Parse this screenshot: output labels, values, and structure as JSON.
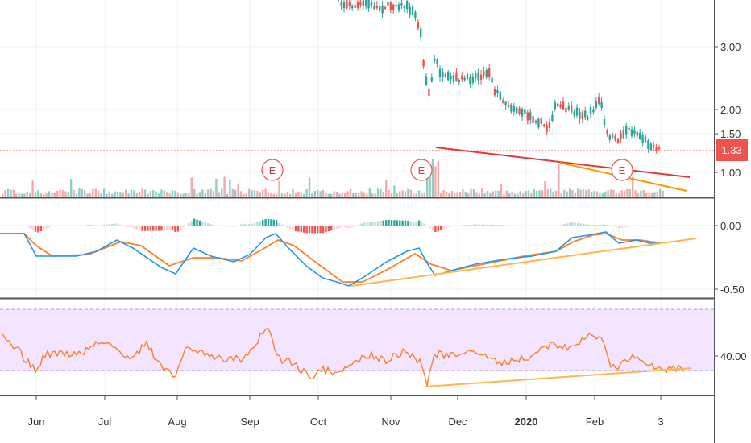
{
  "chart_data": [
    {
      "type": "candlestick",
      "panel": "price",
      "y_ticks": [
        "3.00",
        "2.00",
        "1.50",
        "1.00"
      ],
      "y_tick_values": [
        3.0,
        2.0,
        1.5,
        1.0
      ],
      "last_price": 1.33,
      "last_price_label": "1.33",
      "earnings_marker_label": "E",
      "earnings_markers": [
        "Sep",
        "Nov",
        "Feb"
      ],
      "colors": {
        "up": "#26a69a",
        "down": "#ef5350",
        "last_price": "#ef5350",
        "trend_red": "#e53935",
        "trend_orange": "#ff9800"
      }
    },
    {
      "type": "line",
      "panel": "macd",
      "y_ticks": [
        "0.00",
        "-0.50"
      ],
      "y_tick_values": [
        0.0,
        -0.5
      ],
      "series": [
        {
          "color": "#2196f3"
        },
        {
          "color": "#ff7f27"
        }
      ],
      "histogram_colors": {
        "pos_strong": "#26a69a",
        "pos_weak": "#b2dfdb",
        "neg_strong": "#ef5350",
        "neg_weak": "#ffcdd2"
      }
    },
    {
      "type": "line",
      "panel": "rsi",
      "y_ticks": [
        "40.00"
      ],
      "y_tick_values": [
        40.0
      ],
      "band_color": "#f3e5ff",
      "line_color": "#ff7f27"
    }
  ],
  "x_axis": {
    "ticks": [
      {
        "label": "Jun",
        "bold": false
      },
      {
        "label": "Jul",
        "bold": false
      },
      {
        "label": "Aug",
        "bold": false
      },
      {
        "label": "Sep",
        "bold": false
      },
      {
        "label": "Oct",
        "bold": false
      },
      {
        "label": "Nov",
        "bold": false
      },
      {
        "label": "Dec",
        "bold": false
      },
      {
        "label": "2020",
        "bold": true
      },
      {
        "label": "Feb",
        "bold": false
      },
      {
        "label": "3",
        "bold": false
      }
    ]
  }
}
